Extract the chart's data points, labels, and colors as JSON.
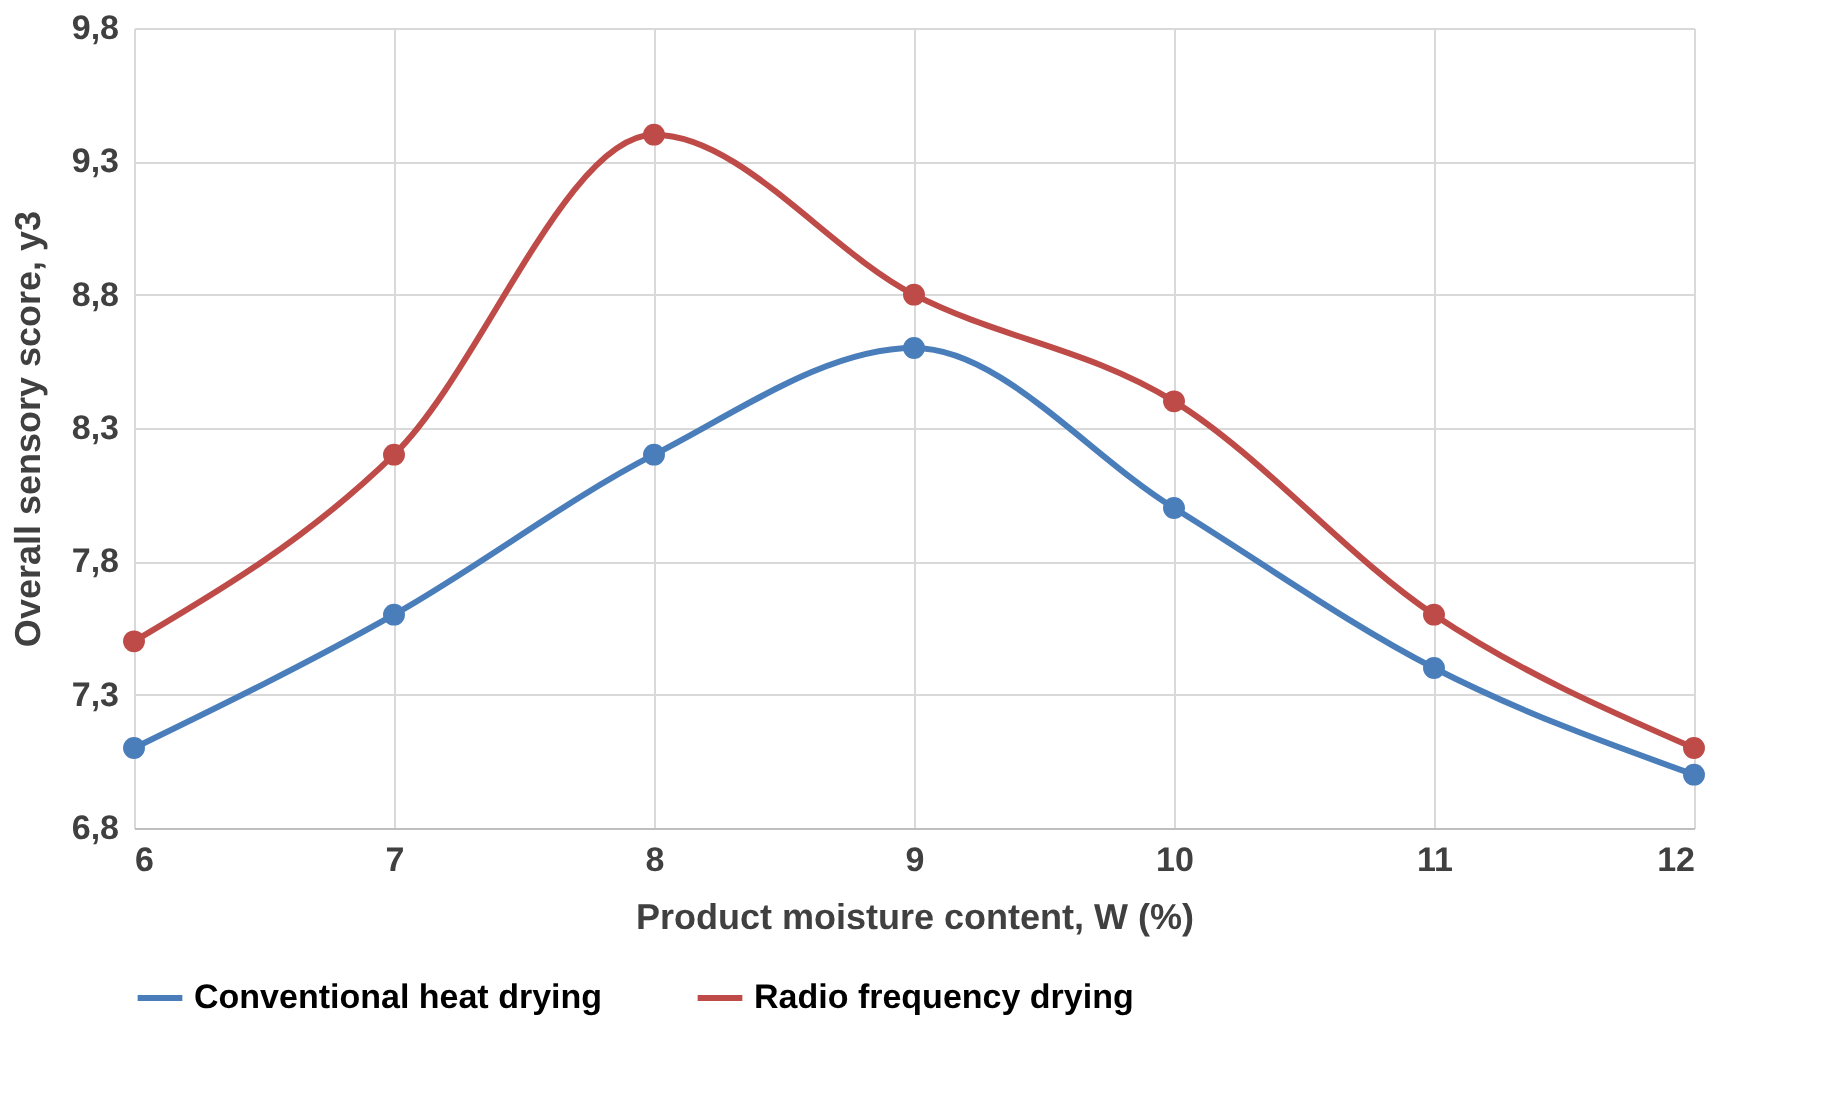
{
  "chart_data": {
    "type": "line",
    "xlabel": "Product moisture content, W (%)",
    "ylabel": "Overall sensory score, y3",
    "x": [
      6,
      7,
      8,
      9,
      10,
      11,
      12
    ],
    "series": [
      {
        "name": "Conventional heat drying",
        "color": "#4a7ebb",
        "values": [
          7.1,
          7.6,
          8.2,
          8.6,
          8.0,
          7.4,
          7.0
        ]
      },
      {
        "name": "Radio frequency drying",
        "color": "#be4b48",
        "values": [
          7.5,
          8.2,
          9.4,
          8.8,
          8.4,
          7.6,
          7.1
        ]
      }
    ],
    "xlim": [
      6,
      12
    ],
    "xticks": [
      6,
      7,
      8,
      9,
      10,
      11,
      12
    ],
    "ylim": [
      6.8,
      9.8
    ],
    "yticks": [
      {
        "value": 6.8,
        "label": "6,8"
      },
      {
        "value": 7.3,
        "label": "7,3"
      },
      {
        "value": 7.8,
        "label": "7,8"
      },
      {
        "value": 8.3,
        "label": "8,3"
      },
      {
        "value": 8.8,
        "label": "8,8"
      },
      {
        "value": 9.3,
        "label": "9,3"
      },
      {
        "value": 9.8,
        "label": "9,8"
      }
    ],
    "grid": true,
    "legend": "bottom",
    "marker": "circle",
    "line_style": "solid"
  }
}
